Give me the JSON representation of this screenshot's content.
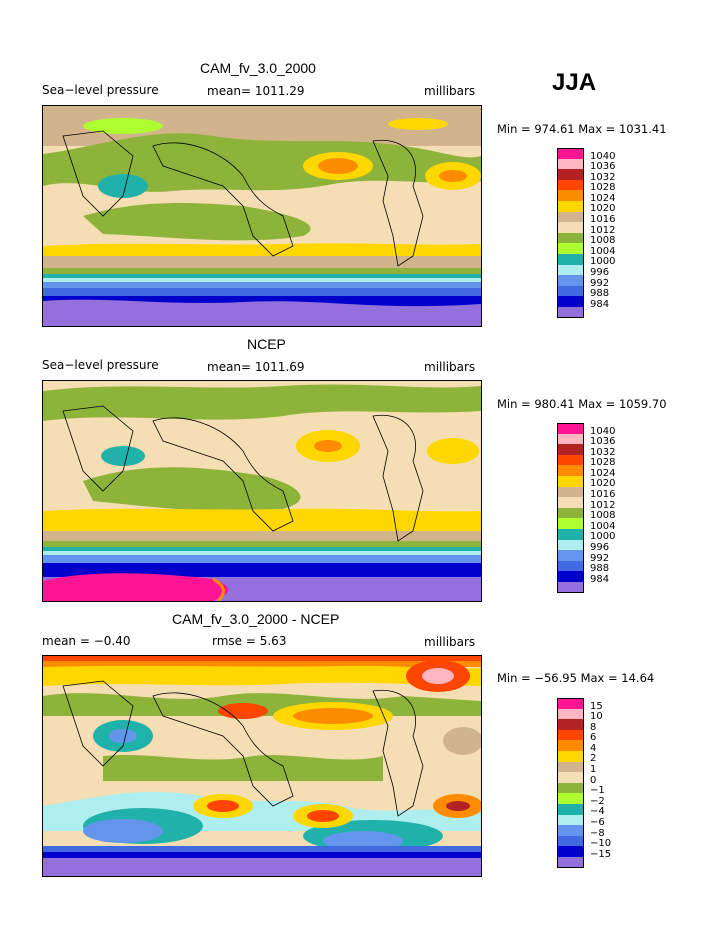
{
  "season": "JJA",
  "panels": [
    {
      "title": "CAM_fv_3.0_2000",
      "left_label": "Sea−level pressure",
      "mid_label": "mean= 1011.29",
      "units": "millibars",
      "minmax": "Min = 974.61  Max = 1031.41",
      "legend": {
        "colors": [
          "#ff1493",
          "#ffb6c1",
          "#b22222",
          "#ff4500",
          "#ff8c00",
          "#ffd700",
          "#d2b48c",
          "#f5deb3",
          "#8db33a",
          "#adff2f",
          "#20b2aa",
          "#afeeee",
          "#6495ed",
          "#4169e1",
          "#0000cd",
          "#9370db"
        ],
        "labels": [
          "1040",
          "1036",
          "1032",
          "1028",
          "1024",
          "1020",
          "1016",
          "1012",
          "1008",
          "1004",
          "1000",
          "996",
          "992",
          "988",
          "984"
        ]
      }
    },
    {
      "title": "NCEP",
      "left_label": "Sea−level pressure",
      "mid_label": "mean= 1011.69",
      "units": "millibars",
      "minmax": "Min = 980.41  Max = 1059.70",
      "legend": {
        "colors": [
          "#ff1493",
          "#ffb6c1",
          "#b22222",
          "#ff4500",
          "#ff8c00",
          "#ffd700",
          "#d2b48c",
          "#f5deb3",
          "#8db33a",
          "#adff2f",
          "#20b2aa",
          "#afeeee",
          "#6495ed",
          "#4169e1",
          "#0000cd",
          "#9370db"
        ],
        "labels": [
          "1040",
          "1036",
          "1032",
          "1028",
          "1024",
          "1020",
          "1016",
          "1012",
          "1008",
          "1004",
          "1000",
          "996",
          "992",
          "988",
          "984"
        ]
      }
    },
    {
      "title": "CAM_fv_3.0_2000 - NCEP",
      "left_label": "mean =   −0.40",
      "mid_label": "rmse =     5.63",
      "units": "millibars",
      "minmax": "Min = −56.95  Max =   14.64",
      "legend": {
        "colors": [
          "#ff1493",
          "#ffb6c1",
          "#b22222",
          "#ff4500",
          "#ff8c00",
          "#ffd700",
          "#d2b48c",
          "#f5deb3",
          "#8db33a",
          "#adff2f",
          "#20b2aa",
          "#afeeee",
          "#6495ed",
          "#4169e1",
          "#0000cd",
          "#9370db"
        ],
        "labels": [
          "15",
          "10",
          "8",
          "6",
          "4",
          "2",
          "1",
          "0",
          "−1",
          "−2",
          "−4",
          "−6",
          "−8",
          "−10",
          "−15"
        ]
      }
    }
  ],
  "chart_data": [
    {
      "type": "heatmap",
      "title": "CAM_fv_3.0_2000",
      "variable": "Sea−level pressure",
      "units": "millibars",
      "mean": 1011.29,
      "min": 974.61,
      "max": 1031.41,
      "contour_levels": [
        984,
        988,
        992,
        996,
        1000,
        1004,
        1008,
        1012,
        1016,
        1020,
        1024,
        1028,
        1032,
        1036,
        1040
      ],
      "season": "JJA"
    },
    {
      "type": "heatmap",
      "title": "NCEP",
      "variable": "Sea−level pressure",
      "units": "millibars",
      "mean": 1011.69,
      "min": 980.41,
      "max": 1059.7,
      "contour_levels": [
        984,
        988,
        992,
        996,
        1000,
        1004,
        1008,
        1012,
        1016,
        1020,
        1024,
        1028,
        1032,
        1036,
        1040
      ],
      "season": "JJA"
    },
    {
      "type": "heatmap",
      "title": "CAM_fv_3.0_2000 - NCEP",
      "units": "millibars",
      "mean": -0.4,
      "rmse": 5.63,
      "min": -56.95,
      "max": 14.64,
      "contour_levels": [
        -15,
        -10,
        -8,
        -6,
        -4,
        -2,
        -1,
        0,
        1,
        2,
        4,
        6,
        8,
        10,
        15
      ],
      "season": "JJA"
    }
  ]
}
